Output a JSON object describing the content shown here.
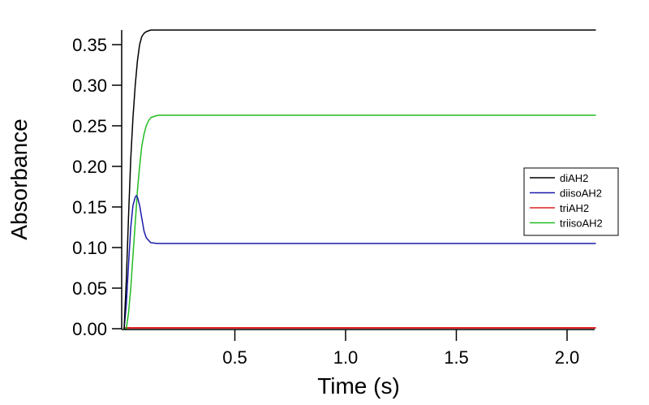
{
  "chart_data": {
    "type": "line",
    "title": "",
    "xlabel": "Time (s)",
    "ylabel": "Absorbance",
    "xlim": [
      0.0,
      2.13
    ],
    "ylim": [
      0.0,
      0.368
    ],
    "xticks": [
      0.5,
      1.0,
      1.5,
      2.0
    ],
    "xtick_labels": [
      "0.5",
      "1.0",
      "1.5",
      "2.0"
    ],
    "yticks": [
      0.0,
      0.05,
      0.1,
      0.15,
      0.2,
      0.25,
      0.3,
      0.35
    ],
    "ytick_labels": [
      "0.00",
      "0.05",
      "0.10",
      "0.15",
      "0.20",
      "0.25",
      "0.30",
      "0.35"
    ],
    "grid": false,
    "legend_position": "right-center",
    "series": [
      {
        "name": "diAH2",
        "color": "#000000",
        "x": [
          0.0,
          0.01,
          0.02,
          0.03,
          0.04,
          0.05,
          0.06,
          0.07,
          0.08,
          0.09,
          0.1,
          0.12,
          0.15,
          0.5,
          1.0,
          1.5,
          2.0,
          2.13
        ],
        "y": [
          0.0,
          0.06,
          0.14,
          0.21,
          0.26,
          0.3,
          0.33,
          0.35,
          0.36,
          0.364,
          0.366,
          0.368,
          0.368,
          0.368,
          0.368,
          0.368,
          0.368,
          0.368
        ]
      },
      {
        "name": "diisoAH2",
        "color": "#1a1aaa",
        "x": [
          0.0,
          0.01,
          0.02,
          0.03,
          0.04,
          0.05,
          0.055,
          0.06,
          0.07,
          0.08,
          0.09,
          0.1,
          0.12,
          0.15,
          0.5,
          1.0,
          1.5,
          2.0,
          2.13
        ],
        "y": [
          0.0,
          0.03,
          0.08,
          0.125,
          0.152,
          0.162,
          0.164,
          0.162,
          0.152,
          0.136,
          0.12,
          0.112,
          0.106,
          0.105,
          0.105,
          0.105,
          0.105,
          0.105,
          0.105
        ]
      },
      {
        "name": "triAH2",
        "color": "#dd2222",
        "x": [
          0.0,
          0.5,
          1.0,
          1.5,
          2.0,
          2.13
        ],
        "y": [
          0.001,
          0.001,
          0.001,
          0.001,
          0.001,
          0.001
        ]
      },
      {
        "name": "triisoAH2",
        "color": "#22bb22",
        "x": [
          0.0,
          0.01,
          0.02,
          0.03,
          0.04,
          0.05,
          0.06,
          0.07,
          0.08,
          0.09,
          0.1,
          0.11,
          0.12,
          0.14,
          0.155,
          0.5,
          1.0,
          1.5,
          2.0,
          2.13
        ],
        "y": [
          0.0,
          0.0,
          0.02,
          0.05,
          0.09,
          0.13,
          0.17,
          0.2,
          0.225,
          0.24,
          0.25,
          0.256,
          0.26,
          0.262,
          0.263,
          0.263,
          0.263,
          0.263,
          0.263,
          0.263
        ]
      }
    ]
  },
  "legend": {
    "items": [
      {
        "label": "diAH2",
        "color": "#000000"
      },
      {
        "label": "diisoAH2",
        "color": "#1a1aaa"
      },
      {
        "label": "triAH2",
        "color": "#dd2222"
      },
      {
        "label": "triisoAH2",
        "color": "#22bb22"
      }
    ]
  },
  "axes": {
    "x_title": "Time (s)",
    "y_title": "Absorbance"
  }
}
